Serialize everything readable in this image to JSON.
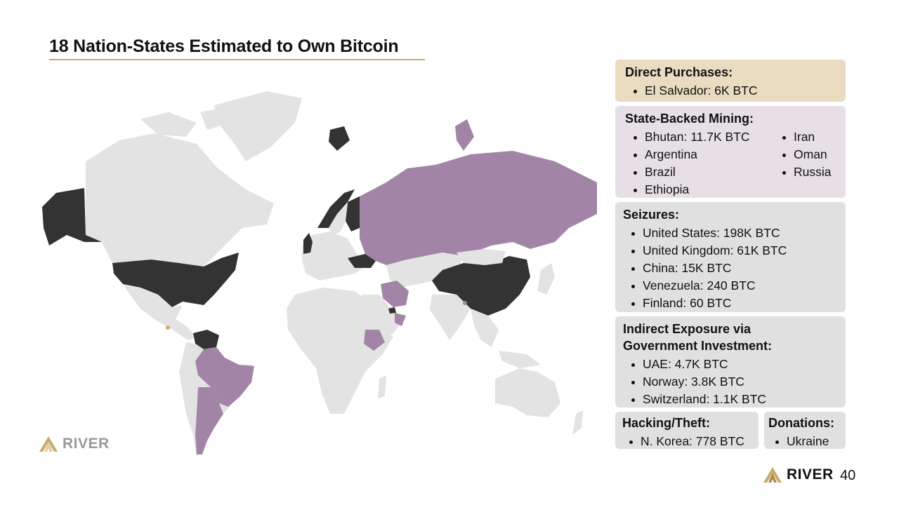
{
  "title": "18 Nation-States Estimated to Own Bitcoin",
  "colors": {
    "accent": "#c8a96a",
    "seized": "#333333",
    "mining_purchase": "#a285a6",
    "land": "#e3e3e3",
    "direct_bg": "#e9dcc0",
    "mining_bg": "#e6e0e6",
    "gray_bg": "#e0e0e0"
  },
  "direct": {
    "heading": "Direct Purchases:",
    "items": [
      "El Salvador: 6K BTC"
    ]
  },
  "mining": {
    "heading": "State-Backed Mining:",
    "col1": [
      "Bhutan: 11.7K BTC",
      "Argentina",
      "Brazil",
      "Ethiopia"
    ],
    "col2": [
      "Iran",
      "Oman",
      "Russia"
    ]
  },
  "seizures": {
    "heading": "Seizures:",
    "items": [
      "United States: 198K BTC",
      "United Kingdom: 61K BTC",
      "China: 15K BTC",
      "Venezuela: 240 BTC",
      "Finland: 60 BTC"
    ]
  },
  "indirect": {
    "heading_line1": "Indirect Exposure via",
    "heading_line2": "Government Investment:",
    "items": [
      "UAE: 4.7K BTC",
      "Norway: 3.8K BTC",
      "Switzerland: 1.1K BTC"
    ]
  },
  "hacking": {
    "heading": "Hacking/Theft:",
    "items": [
      "N. Korea: 778 BTC"
    ]
  },
  "donations": {
    "heading": "Donations:",
    "items": [
      "Ukraine"
    ]
  },
  "brand": "RIVER",
  "page_number": "40",
  "icons": {
    "logo": "river-mountain-logo-icon"
  }
}
